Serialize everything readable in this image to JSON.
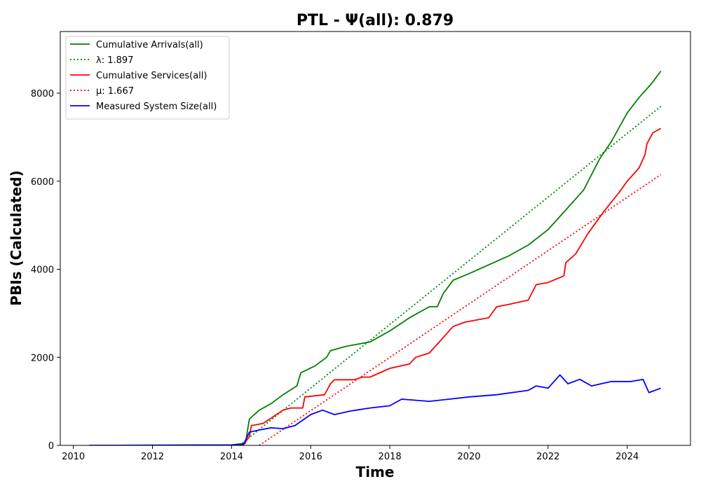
{
  "chart_data": {
    "type": "line",
    "title": "PTL -  Ψ(all): 0.879",
    "xlabel": "Time",
    "ylabel": "PBIs (Calculated)",
    "xlim": [
      2009.67,
      2025.6
    ],
    "ylim": [
      0,
      9400
    ],
    "x_ticks": [
      2010,
      2012,
      2014,
      2016,
      2018,
      2020,
      2022,
      2024
    ],
    "y_ticks": [
      0,
      2000,
      4000,
      6000,
      8000
    ],
    "grid": false,
    "legend_position": "top-left",
    "series": [
      {
        "name": "Cumulative Arrivals(all)",
        "color": "#008000",
        "style": "solid",
        "points": [
          [
            2010.4,
            0
          ],
          [
            2014.0,
            10
          ],
          [
            2014.35,
            50
          ],
          [
            2014.45,
            600
          ],
          [
            2014.7,
            800
          ],
          [
            2015.0,
            950
          ],
          [
            2015.3,
            1150
          ],
          [
            2015.65,
            1350
          ],
          [
            2015.75,
            1650
          ],
          [
            2016.1,
            1800
          ],
          [
            2016.4,
            2000
          ],
          [
            2016.5,
            2150
          ],
          [
            2016.9,
            2250
          ],
          [
            2017.5,
            2350
          ],
          [
            2018.0,
            2600
          ],
          [
            2018.5,
            2900
          ],
          [
            2019.0,
            3150
          ],
          [
            2019.2,
            3150
          ],
          [
            2019.35,
            3450
          ],
          [
            2019.6,
            3750
          ],
          [
            2020.0,
            3900
          ],
          [
            2020.5,
            4100
          ],
          [
            2021.0,
            4300
          ],
          [
            2021.5,
            4550
          ],
          [
            2022.0,
            4900
          ],
          [
            2022.5,
            5400
          ],
          [
            2022.9,
            5800
          ],
          [
            2023.3,
            6500
          ],
          [
            2023.6,
            6900
          ],
          [
            2024.0,
            7550
          ],
          [
            2024.3,
            7900
          ],
          [
            2024.6,
            8200
          ],
          [
            2024.85,
            8500
          ]
        ]
      },
      {
        "name": "λ: 1.897",
        "color": "#008000",
        "style": "dotted",
        "points": [
          [
            2014.2,
            0
          ],
          [
            2024.85,
            7700
          ]
        ]
      },
      {
        "name": "Cumulative Services(all)",
        "color": "#ff0000",
        "style": "solid",
        "points": [
          [
            2010.4,
            0
          ],
          [
            2014.0,
            0
          ],
          [
            2014.3,
            10
          ],
          [
            2014.45,
            200
          ],
          [
            2014.5,
            450
          ],
          [
            2014.8,
            500
          ],
          [
            2015.3,
            800
          ],
          [
            2015.5,
            850
          ],
          [
            2015.8,
            850
          ],
          [
            2015.85,
            1100
          ],
          [
            2016.35,
            1150
          ],
          [
            2016.5,
            1400
          ],
          [
            2016.6,
            1490
          ],
          [
            2017.1,
            1490
          ],
          [
            2017.3,
            1550
          ],
          [
            2017.5,
            1550
          ],
          [
            2018.0,
            1750
          ],
          [
            2018.5,
            1850
          ],
          [
            2018.65,
            2000
          ],
          [
            2019.0,
            2100
          ],
          [
            2019.3,
            2400
          ],
          [
            2019.6,
            2700
          ],
          [
            2019.9,
            2800
          ],
          [
            2020.5,
            2900
          ],
          [
            2020.7,
            3150
          ],
          [
            2021.0,
            3200
          ],
          [
            2021.5,
            3300
          ],
          [
            2021.7,
            3650
          ],
          [
            2022.0,
            3700
          ],
          [
            2022.4,
            3850
          ],
          [
            2022.45,
            4150
          ],
          [
            2022.7,
            4350
          ],
          [
            2023.0,
            4800
          ],
          [
            2023.4,
            5300
          ],
          [
            2023.8,
            5750
          ],
          [
            2024.0,
            6000
          ],
          [
            2024.3,
            6300
          ],
          [
            2024.45,
            6600
          ],
          [
            2024.5,
            6850
          ],
          [
            2024.65,
            7100
          ],
          [
            2024.85,
            7200
          ]
        ]
      },
      {
        "name": "μ: 1.667",
        "color": "#ff0000",
        "style": "dotted",
        "points": [
          [
            2014.7,
            0
          ],
          [
            2024.85,
            6150
          ]
        ]
      },
      {
        "name": "Measured System Size(all)",
        "color": "#0000ff",
        "style": "solid",
        "points": [
          [
            2010.4,
            0
          ],
          [
            2014.0,
            10
          ],
          [
            2014.3,
            20
          ],
          [
            2014.45,
            300
          ],
          [
            2014.7,
            350
          ],
          [
            2015.0,
            400
          ],
          [
            2015.3,
            380
          ],
          [
            2015.6,
            450
          ],
          [
            2016.0,
            700
          ],
          [
            2016.3,
            800
          ],
          [
            2016.6,
            700
          ],
          [
            2017.0,
            780
          ],
          [
            2017.5,
            850
          ],
          [
            2018.0,
            900
          ],
          [
            2018.3,
            1050
          ],
          [
            2019.0,
            1000
          ],
          [
            2019.5,
            1050
          ],
          [
            2020.0,
            1100
          ],
          [
            2020.7,
            1150
          ],
          [
            2021.5,
            1250
          ],
          [
            2021.7,
            1350
          ],
          [
            2022.0,
            1300
          ],
          [
            2022.3,
            1600
          ],
          [
            2022.5,
            1400
          ],
          [
            2022.8,
            1500
          ],
          [
            2023.1,
            1350
          ],
          [
            2023.6,
            1450
          ],
          [
            2024.1,
            1450
          ],
          [
            2024.4,
            1500
          ],
          [
            2024.55,
            1200
          ],
          [
            2024.85,
            1300
          ]
        ]
      }
    ]
  }
}
